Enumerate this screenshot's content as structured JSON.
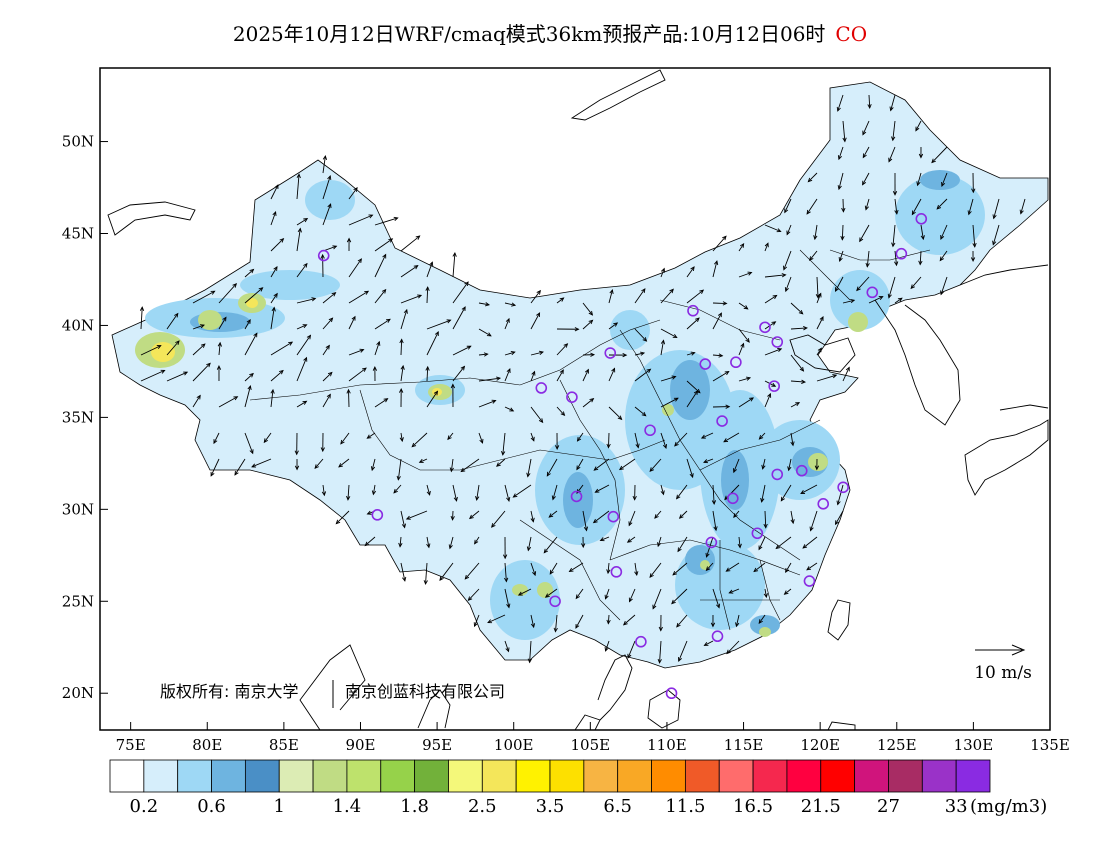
{
  "title": {
    "text": "2025年10月12日WRF/cmaq模式36km预报产品:10月12日06时",
    "pollutant": "CO"
  },
  "axes": {
    "lat_ticks": [
      "50N",
      "45N",
      "40N",
      "35N",
      "30N",
      "25N",
      "20N"
    ],
    "lon_ticks": [
      "75E",
      "80E",
      "85E",
      "90E",
      "95E",
      "100E",
      "105E",
      "110E",
      "115E",
      "120E",
      "125E",
      "130E",
      "135E"
    ],
    "lat_range": [
      18,
      54
    ],
    "lon_range": [
      73,
      135
    ]
  },
  "copyright": {
    "part1": "版权所有: 南京大学",
    "part2": "南京创蓝科技有限公司"
  },
  "wind_scale": {
    "label": "10 m/s"
  },
  "colorbar": {
    "unit": "(mg/m3)",
    "labels": [
      "0.2",
      "0.6",
      "1",
      "1.4",
      "1.8",
      "2.5",
      "3.5",
      "6.5",
      "11.5",
      "16.5",
      "21.5",
      "27",
      "33"
    ],
    "colors": [
      "#ffffff",
      "#d6eefb",
      "#9ed8f5",
      "#6eb4e0",
      "#4a8fc6",
      "#dcecb4",
      "#c0dc84",
      "#bee26c",
      "#96d24a",
      "#72b13a",
      "#f4f87a",
      "#f4e65a",
      "#fff200",
      "#fde000",
      "#f7b443",
      "#f9a825",
      "#ff8c00",
      "#f05a28",
      "#ff6c6c",
      "#f5284e",
      "#ff0040",
      "#ff0000",
      "#d0147c",
      "#a82c64",
      "#9a32c8",
      "#8a2be2"
    ]
  },
  "stations": [
    {
      "lon": 87.6,
      "lat": 43.8
    },
    {
      "lon": 101.8,
      "lat": 36.6
    },
    {
      "lon": 103.8,
      "lat": 36.1
    },
    {
      "lon": 106.3,
      "lat": 38.5
    },
    {
      "lon": 111.7,
      "lat": 40.8
    },
    {
      "lon": 112.5,
      "lat": 37.9
    },
    {
      "lon": 114.5,
      "lat": 38.0
    },
    {
      "lon": 116.4,
      "lat": 39.9
    },
    {
      "lon": 117.2,
      "lat": 39.1
    },
    {
      "lon": 117.0,
      "lat": 36.7
    },
    {
      "lon": 123.4,
      "lat": 41.8
    },
    {
      "lon": 125.3,
      "lat": 43.9
    },
    {
      "lon": 126.6,
      "lat": 45.8
    },
    {
      "lon": 108.9,
      "lat": 34.3
    },
    {
      "lon": 113.6,
      "lat": 34.8
    },
    {
      "lon": 117.2,
      "lat": 31.9
    },
    {
      "lon": 118.8,
      "lat": 32.1
    },
    {
      "lon": 121.5,
      "lat": 31.2
    },
    {
      "lon": 120.2,
      "lat": 30.3
    },
    {
      "lon": 114.3,
      "lat": 30.6
    },
    {
      "lon": 104.1,
      "lat": 30.7
    },
    {
      "lon": 106.5,
      "lat": 29.6
    },
    {
      "lon": 91.1,
      "lat": 29.7
    },
    {
      "lon": 112.9,
      "lat": 28.2
    },
    {
      "lon": 115.9,
      "lat": 28.7
    },
    {
      "lon": 106.7,
      "lat": 26.6
    },
    {
      "lon": 102.7,
      "lat": 25.0
    },
    {
      "lon": 119.3,
      "lat": 26.1
    },
    {
      "lon": 113.3,
      "lat": 23.1
    },
    {
      "lon": 108.3,
      "lat": 22.8
    },
    {
      "lon": 110.3,
      "lat": 20.0
    }
  ]
}
